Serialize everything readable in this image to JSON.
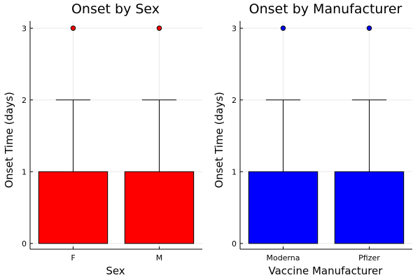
{
  "chart_data": [
    {
      "type": "boxplot",
      "title": "Onset by Sex",
      "xlabel": "Sex",
      "ylabel": "Onset Time (days)",
      "ylim": [
        -0.08,
        3.1
      ],
      "yticks": [
        "0",
        "1",
        "2",
        "3"
      ],
      "grid": true,
      "color": "#ff0000",
      "categories": [
        "F",
        "M"
      ],
      "boxes": [
        {
          "category": "F",
          "min": 0,
          "q1": 0,
          "median": 0,
          "q3": 1,
          "whisker_high": 2,
          "outliers": [
            3
          ]
        },
        {
          "category": "M",
          "min": 0,
          "q1": 0,
          "median": 0,
          "q3": 1,
          "whisker_high": 2,
          "outliers": [
            3
          ]
        }
      ]
    },
    {
      "type": "boxplot",
      "title": "Onset by Manufacturer",
      "xlabel": "Vaccine Manufacturer",
      "ylabel": "Onset Time (days)",
      "ylim": [
        -0.08,
        3.1
      ],
      "yticks": [
        "0",
        "1",
        "2",
        "3"
      ],
      "grid": true,
      "color": "#0000ff",
      "categories": [
        "Moderna",
        "Pfizer"
      ],
      "boxes": [
        {
          "category": "Moderna",
          "min": 0,
          "q1": 0,
          "median": 0,
          "q3": 1,
          "whisker_high": 2,
          "outliers": [
            3
          ]
        },
        {
          "category": "Pfizer",
          "min": 0,
          "q1": 0,
          "median": 0,
          "q3": 1,
          "whisker_high": 2,
          "outliers": [
            3
          ]
        }
      ]
    }
  ]
}
